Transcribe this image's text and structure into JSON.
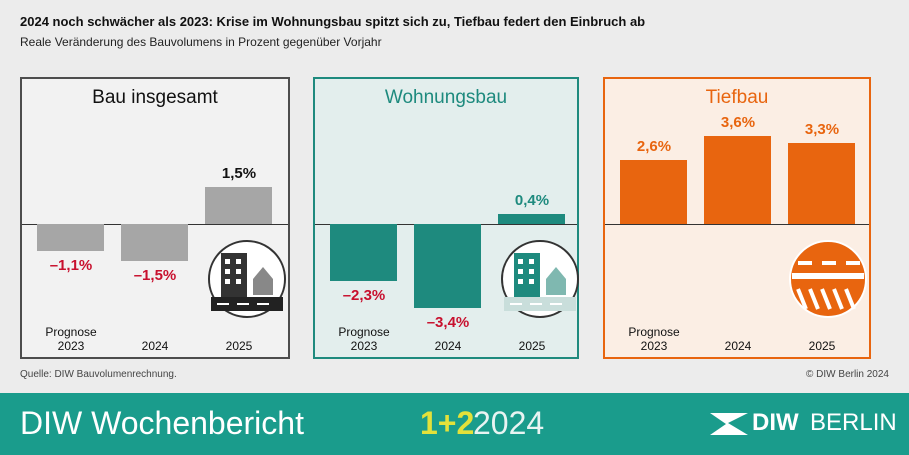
{
  "title": "2024 noch schwächer als 2023: Krise im Wohnungsbau spitzt sich zu, Tiefbau federt den Einbruch ab",
  "subtitle": "Reale Veränderung des Bauvolumens in Prozent gegenüber Vorjahr",
  "source": "Quelle: DIW Bauvolumenrechnung.",
  "copyright": "© DIW Berlin 2024",
  "footer": {
    "publication": "DIW Wochenbericht",
    "issue": "1+2",
    "year": "2024",
    "logo_left": "DIW",
    "logo_right": "BERLIN"
  },
  "chart_data": [
    {
      "type": "bar",
      "title": "Bau insgesamt",
      "categories": [
        "Prognose 2023",
        "2024",
        "2025"
      ],
      "values": [
        -1.1,
        -1.5,
        1.5
      ],
      "value_labels": [
        "–1,1%",
        "–1,5%",
        "1,5%"
      ],
      "color": "#a6a6a6",
      "title_color": "#111111",
      "positive_label_color": "#111111",
      "negative_label_color": "#c8102e",
      "frame_color": "#4d4d4d",
      "background": "#f2f2f2",
      "ylim": [
        -5.4,
        5.9
      ]
    },
    {
      "type": "bar",
      "title": "Wohnungsbau",
      "categories": [
        "Prognose 2023",
        "2024",
        "2025"
      ],
      "values": [
        -2.3,
        -3.4,
        0.4
      ],
      "value_labels": [
        "–2,3%",
        "–3,4%",
        "0,4%"
      ],
      "color": "#1e8a7e",
      "title_color": "#1e8a7e",
      "positive_label_color": "#1e8a7e",
      "negative_label_color": "#c8102e",
      "frame_color": "#1e8a7e",
      "background": "#e3eeed",
      "ylim": [
        -5.4,
        5.9
      ]
    },
    {
      "type": "bar",
      "title": "Tiefbau",
      "categories": [
        "Prognose 2023",
        "2024",
        "2025"
      ],
      "values": [
        2.6,
        3.6,
        3.3
      ],
      "value_labels": [
        "2,6%",
        "3,6%",
        "3,3%"
      ],
      "color": "#e8650f",
      "title_color": "#e8650f",
      "positive_label_color": "#e8650f",
      "negative_label_color": "#e8650f",
      "frame_color": "#e8650f",
      "background": "#fbeee4",
      "ylim": [
        -5.4,
        5.9
      ]
    }
  ]
}
